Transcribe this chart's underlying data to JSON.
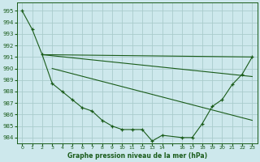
{
  "title": "Graphe pression niveau de la mer (hPa)",
  "background_color": "#cde8ec",
  "grid_color": "#aacccc",
  "line_color": "#1a5c1a",
  "xlim": [
    -0.5,
    23.5
  ],
  "ylim": [
    983.5,
    995.7
  ],
  "yticks": [
    984,
    985,
    986,
    987,
    988,
    989,
    990,
    991,
    992,
    993,
    994,
    995
  ],
  "xtick_labels": [
    "0",
    "1",
    "2",
    "3",
    "4",
    "5",
    "6",
    "7",
    "8",
    "9",
    "10",
    "11",
    "12",
    "13",
    "14",
    "",
    "16",
    "17",
    "18",
    "19",
    "20",
    "21",
    "22",
    "23"
  ],
  "line_main_x": [
    0,
    1,
    2,
    3,
    4,
    5,
    6,
    7,
    8,
    9,
    10,
    11,
    12,
    13,
    14,
    16,
    17,
    18,
    19,
    20,
    21,
    22,
    23
  ],
  "line_main_y": [
    995.0,
    993.4,
    991.2,
    988.7,
    988.0,
    987.3,
    986.6,
    986.3,
    985.5,
    985.0,
    984.7,
    984.7,
    984.7,
    983.7,
    984.2,
    984.0,
    984.0,
    985.2,
    986.7,
    987.3,
    988.6,
    989.5,
    991.0
  ],
  "line2_x": [
    2,
    23
  ],
  "line2_y": [
    991.2,
    991.0
  ],
  "line3_x": [
    2,
    23
  ],
  "line3_y": [
    991.2,
    989.3
  ],
  "line4_x": [
    3,
    23
  ],
  "line4_y": [
    990.0,
    985.5
  ]
}
